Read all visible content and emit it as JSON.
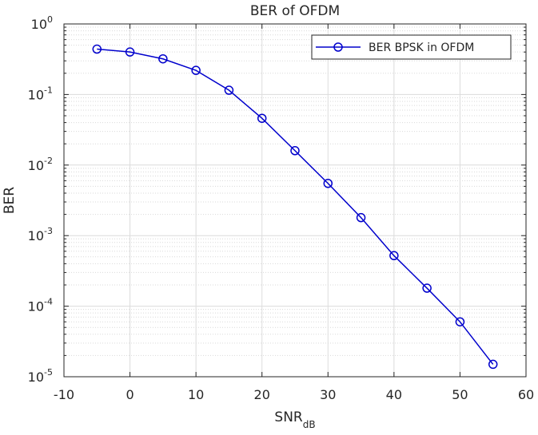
{
  "chart_data": {
    "type": "line",
    "title": "BER of OFDM",
    "xlabel": {
      "main": "SNR",
      "sub": "dB"
    },
    "ylabel": "BER",
    "xlim": [
      -10,
      60
    ],
    "ylim": [
      1e-05,
      1
    ],
    "yscale": "log",
    "grid": true,
    "minor_grid": true,
    "legend_position": "top-right",
    "x_ticks": [
      "-10",
      "0",
      "10",
      "20",
      "30",
      "40",
      "50",
      "60"
    ],
    "y_ticks": [
      {
        "base": "10",
        "exp": "0"
      },
      {
        "base": "10",
        "exp": "-1"
      },
      {
        "base": "10",
        "exp": "-2"
      },
      {
        "base": "10",
        "exp": "-3"
      },
      {
        "base": "10",
        "exp": "-4"
      },
      {
        "base": "10",
        "exp": "-5"
      }
    ],
    "series": [
      {
        "name": "BER BPSK in OFDM",
        "color": "#0000cc",
        "marker": "circle",
        "x": [
          -5,
          0,
          5,
          10,
          15,
          20,
          25,
          30,
          35,
          40,
          45,
          50,
          55
        ],
        "y": [
          0.44,
          0.4,
          0.32,
          0.22,
          0.115,
          0.046,
          0.016,
          0.0055,
          0.0018,
          0.00052,
          0.00018,
          6e-05,
          1.5e-05
        ]
      }
    ]
  }
}
